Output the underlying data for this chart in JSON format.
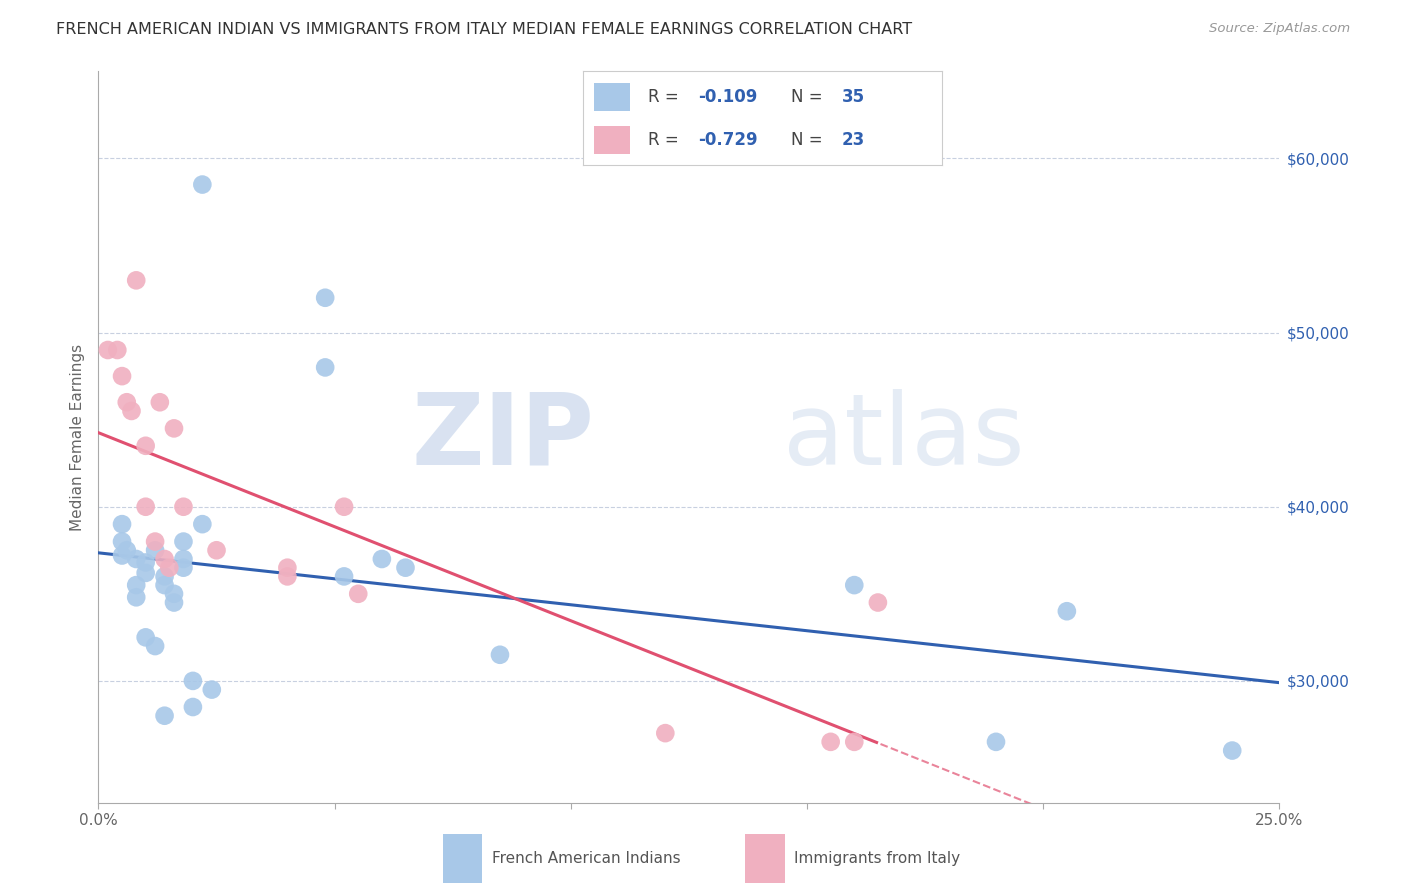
{
  "title": "FRENCH AMERICAN INDIAN VS IMMIGRANTS FROM ITALY MEDIAN FEMALE EARNINGS CORRELATION CHART",
  "source": "Source: ZipAtlas.com",
  "ylabel": "Median Female Earnings",
  "xlim": [
    0.0,
    0.25
  ],
  "ylim": [
    23000,
    65000
  ],
  "xticks": [
    0.0,
    0.05,
    0.1,
    0.15,
    0.2,
    0.25
  ],
  "xtick_labels": [
    "0.0%",
    "",
    "",
    "",
    "",
    "25.0%"
  ],
  "yticks_right": [
    60000,
    50000,
    40000,
    30000
  ],
  "ytick_labels_right": [
    "$60,000",
    "$50,000",
    "$40,000",
    "$30,000"
  ],
  "legend_r1": "-0.109",
  "legend_n1": "35",
  "legend_r2": "-0.729",
  "legend_n2": "23",
  "blue_color": "#a8c8e8",
  "blue_line_color": "#3060b0",
  "pink_color": "#f0b0c0",
  "pink_line_color": "#e05070",
  "blue_scatter_x": [
    0.022,
    0.005,
    0.005,
    0.006,
    0.008,
    0.008,
    0.01,
    0.01,
    0.012,
    0.012,
    0.014,
    0.014,
    0.014,
    0.016,
    0.016,
    0.018,
    0.018,
    0.018,
    0.02,
    0.02,
    0.022,
    0.024,
    0.048,
    0.048,
    0.052,
    0.06,
    0.065,
    0.085,
    0.16,
    0.19,
    0.205,
    0.24,
    0.005,
    0.008,
    0.01
  ],
  "blue_scatter_y": [
    58500,
    39000,
    38000,
    37500,
    37000,
    35500,
    36800,
    32500,
    37500,
    32000,
    36000,
    35500,
    28000,
    35000,
    34500,
    38000,
    37000,
    36500,
    30000,
    28500,
    39000,
    29500,
    52000,
    48000,
    36000,
    37000,
    36500,
    31500,
    35500,
    26500,
    34000,
    26000,
    37200,
    34800,
    36200
  ],
  "pink_scatter_x": [
    0.002,
    0.004,
    0.005,
    0.006,
    0.008,
    0.01,
    0.01,
    0.012,
    0.013,
    0.014,
    0.015,
    0.016,
    0.018,
    0.025,
    0.04,
    0.04,
    0.052,
    0.055,
    0.12,
    0.155,
    0.16,
    0.165,
    0.007
  ],
  "pink_scatter_y": [
    49000,
    49000,
    47500,
    46000,
    53000,
    43500,
    40000,
    38000,
    46000,
    37000,
    36500,
    44500,
    40000,
    37500,
    36000,
    36500,
    40000,
    35000,
    27000,
    26500,
    26500,
    34500,
    45500
  ],
  "watermark_zip": "ZIP",
  "watermark_atlas": "atlas",
  "watermark_color": "#c8d8f0",
  "background_color": "#ffffff",
  "grid_color": "#c8d0e0"
}
